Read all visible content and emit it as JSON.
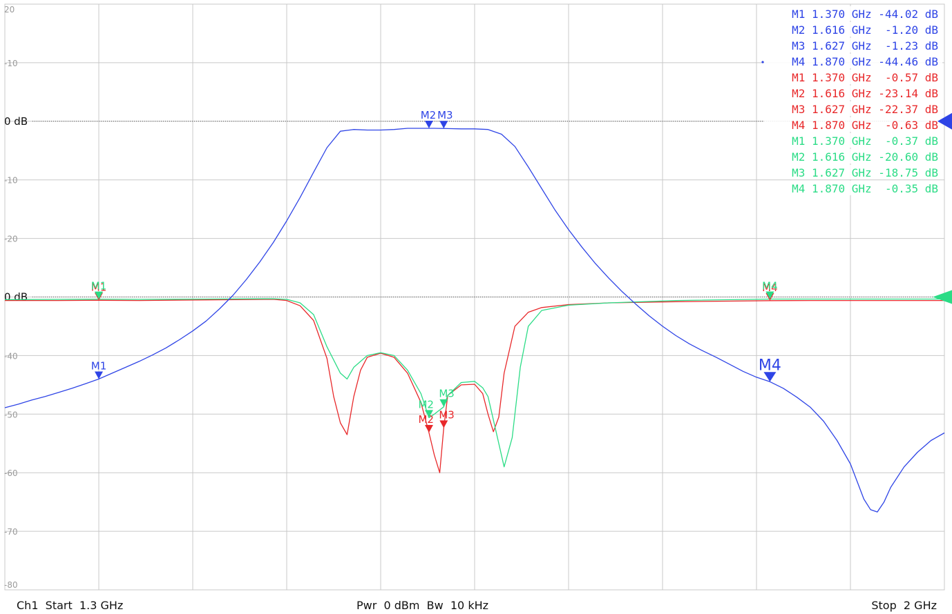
{
  "chart_data": {
    "type": "line",
    "x_range_ghz": [
      1.3,
      2.0
    ],
    "y_ticks": [
      "20",
      "-10",
      "0 dB",
      "-10",
      "-20",
      "0 dB",
      "-40",
      "-50",
      "-60",
      "-70",
      "-80"
    ],
    "grid": true,
    "series": [
      {
        "color": "#2e44e6",
        "scale": "top",
        "points": [
          [
            1.3,
            -48.9
          ],
          [
            1.31,
            -48.3
          ],
          [
            1.32,
            -47.6
          ],
          [
            1.33,
            -47.0
          ],
          [
            1.34,
            -46.3
          ],
          [
            1.35,
            -45.6
          ],
          [
            1.36,
            -44.8
          ],
          [
            1.37,
            -44.0
          ],
          [
            1.38,
            -43.0
          ],
          [
            1.39,
            -42.0
          ],
          [
            1.4,
            -41.0
          ],
          [
            1.41,
            -39.9
          ],
          [
            1.42,
            -38.7
          ],
          [
            1.43,
            -37.3
          ],
          [
            1.44,
            -35.8
          ],
          [
            1.45,
            -34.1
          ],
          [
            1.46,
            -32.0
          ],
          [
            1.47,
            -29.7
          ],
          [
            1.48,
            -27.0
          ],
          [
            1.49,
            -24.0
          ],
          [
            1.5,
            -20.7
          ],
          [
            1.51,
            -17.0
          ],
          [
            1.52,
            -13.0
          ],
          [
            1.53,
            -8.7
          ],
          [
            1.54,
            -4.5
          ],
          [
            1.55,
            -1.7
          ],
          [
            1.56,
            -1.4
          ],
          [
            1.57,
            -1.5
          ],
          [
            1.58,
            -1.5
          ],
          [
            1.59,
            -1.4
          ],
          [
            1.6,
            -1.2
          ],
          [
            1.61,
            -1.2
          ],
          [
            1.616,
            -1.2
          ],
          [
            1.62,
            -1.2
          ],
          [
            1.627,
            -1.23
          ],
          [
            1.63,
            -1.25
          ],
          [
            1.64,
            -1.3
          ],
          [
            1.65,
            -1.3
          ],
          [
            1.66,
            -1.4
          ],
          [
            1.67,
            -2.2
          ],
          [
            1.68,
            -4.3
          ],
          [
            1.69,
            -7.8
          ],
          [
            1.7,
            -11.5
          ],
          [
            1.71,
            -15.2
          ],
          [
            1.72,
            -18.5
          ],
          [
            1.73,
            -21.5
          ],
          [
            1.74,
            -24.3
          ],
          [
            1.75,
            -26.8
          ],
          [
            1.76,
            -29.1
          ],
          [
            1.77,
            -31.2
          ],
          [
            1.78,
            -33.2
          ],
          [
            1.79,
            -35.0
          ],
          [
            1.8,
            -36.6
          ],
          [
            1.81,
            -38.0
          ],
          [
            1.82,
            -39.2
          ],
          [
            1.83,
            -40.3
          ],
          [
            1.84,
            -41.5
          ],
          [
            1.85,
            -42.7
          ],
          [
            1.86,
            -43.7
          ],
          [
            1.87,
            -44.46
          ],
          [
            1.88,
            -45.6
          ],
          [
            1.89,
            -47.1
          ],
          [
            1.9,
            -48.8
          ],
          [
            1.91,
            -51.2
          ],
          [
            1.92,
            -54.5
          ],
          [
            1.93,
            -58.5
          ],
          [
            1.935,
            -61.5
          ],
          [
            1.94,
            -64.5
          ],
          [
            1.945,
            -66.3
          ],
          [
            1.95,
            -66.7
          ],
          [
            1.955,
            -65.0
          ],
          [
            1.96,
            -62.5
          ],
          [
            1.97,
            -59.0
          ],
          [
            1.98,
            -56.5
          ],
          [
            1.99,
            -54.5
          ],
          [
            2.0,
            -53.2
          ]
        ]
      },
      {
        "color": "#e8282a",
        "scale": "bottom",
        "points": [
          [
            1.3,
            -0.6
          ],
          [
            1.34,
            -0.6
          ],
          [
            1.37,
            -0.57
          ],
          [
            1.4,
            -0.6
          ],
          [
            1.45,
            -0.5
          ],
          [
            1.5,
            -0.4
          ],
          [
            1.51,
            -0.6
          ],
          [
            1.52,
            -1.5
          ],
          [
            1.53,
            -4.0
          ],
          [
            1.54,
            -10.5
          ],
          [
            1.545,
            -17.0
          ],
          [
            1.55,
            -21.5
          ],
          [
            1.555,
            -23.5
          ],
          [
            1.56,
            -17.0
          ],
          [
            1.565,
            -12.5
          ],
          [
            1.57,
            -10.3
          ],
          [
            1.58,
            -9.6
          ],
          [
            1.59,
            -10.3
          ],
          [
            1.6,
            -13.0
          ],
          [
            1.61,
            -18.0
          ],
          [
            1.616,
            -23.14
          ],
          [
            1.62,
            -27.0
          ],
          [
            1.624,
            -30.0
          ],
          [
            1.627,
            -22.37
          ],
          [
            1.63,
            -16.8
          ],
          [
            1.64,
            -15.0
          ],
          [
            1.65,
            -14.9
          ],
          [
            1.656,
            -16.5
          ],
          [
            1.66,
            -20.0
          ],
          [
            1.664,
            -23.0
          ],
          [
            1.668,
            -20.5
          ],
          [
            1.672,
            -13.0
          ],
          [
            1.68,
            -5.0
          ],
          [
            1.69,
            -2.6
          ],
          [
            1.7,
            -1.8
          ],
          [
            1.72,
            -1.3
          ],
          [
            1.75,
            -1.0
          ],
          [
            1.8,
            -0.8
          ],
          [
            1.87,
            -0.63
          ],
          [
            1.9,
            -0.6
          ],
          [
            2.0,
            -0.6
          ]
        ]
      },
      {
        "color": "#2bdc86",
        "scale": "bottom",
        "points": [
          [
            1.3,
            -0.45
          ],
          [
            1.34,
            -0.4
          ],
          [
            1.37,
            -0.37
          ],
          [
            1.4,
            -0.4
          ],
          [
            1.45,
            -0.35
          ],
          [
            1.5,
            -0.3
          ],
          [
            1.51,
            -0.4
          ],
          [
            1.52,
            -1.0
          ],
          [
            1.53,
            -3.0
          ],
          [
            1.54,
            -8.5
          ],
          [
            1.55,
            -13.0
          ],
          [
            1.555,
            -14.0
          ],
          [
            1.56,
            -12.0
          ],
          [
            1.57,
            -10.0
          ],
          [
            1.58,
            -9.5
          ],
          [
            1.59,
            -10.0
          ],
          [
            1.6,
            -12.5
          ],
          [
            1.61,
            -16.5
          ],
          [
            1.616,
            -20.6
          ],
          [
            1.62,
            -20.0
          ],
          [
            1.627,
            -18.75
          ],
          [
            1.63,
            -16.8
          ],
          [
            1.64,
            -14.6
          ],
          [
            1.65,
            -14.4
          ],
          [
            1.656,
            -15.5
          ],
          [
            1.66,
            -17.0
          ],
          [
            1.666,
            -23.0
          ],
          [
            1.672,
            -29.0
          ],
          [
            1.678,
            -24.0
          ],
          [
            1.684,
            -12.0
          ],
          [
            1.69,
            -5.0
          ],
          [
            1.7,
            -2.3
          ],
          [
            1.72,
            -1.4
          ],
          [
            1.75,
            -1.0
          ],
          [
            1.8,
            -0.6
          ],
          [
            1.87,
            -0.35
          ],
          [
            1.9,
            -0.35
          ],
          [
            2.0,
            -0.35
          ]
        ]
      }
    ],
    "markers": [
      {
        "series": 0,
        "label": "M1",
        "freq": 1.37,
        "value": -44.02,
        "big": false
      },
      {
        "series": 0,
        "label": "M2",
        "freq": 1.616,
        "value": -1.2,
        "big": false
      },
      {
        "series": 0,
        "label": "M3",
        "freq": 1.627,
        "value": -1.23,
        "big": false
      },
      {
        "series": 0,
        "label": "M4",
        "freq": 1.87,
        "value": -44.46,
        "big": true
      },
      {
        "series": 1,
        "label": "M1",
        "freq": 1.37,
        "value": -0.57,
        "big": false
      },
      {
        "series": 1,
        "label": "M2",
        "freq": 1.616,
        "value": -23.14,
        "big": false
      },
      {
        "series": 1,
        "label": "M3",
        "freq": 1.627,
        "value": -22.37,
        "big": false
      },
      {
        "series": 1,
        "label": "M4",
        "freq": 1.87,
        "value": -0.63,
        "big": false
      },
      {
        "series": 2,
        "label": "M1",
        "freq": 1.37,
        "value": -0.37,
        "big": false
      },
      {
        "series": 2,
        "label": "M2",
        "freq": 1.616,
        "value": -20.6,
        "big": false
      },
      {
        "series": 2,
        "label": "M3",
        "freq": 1.627,
        "value": -18.75,
        "big": false
      },
      {
        "series": 2,
        "label": "M4",
        "freq": 1.87,
        "value": -0.35,
        "big": false
      }
    ],
    "readout": [
      {
        "color": "#2e44e6",
        "text": "M1 1.370 GHz -44.02 dB",
        "active": false
      },
      {
        "color": "#2e44e6",
        "text": "M2 1.616 GHz  -1.20 dB",
        "active": false
      },
      {
        "color": "#2e44e6",
        "text": "M3 1.627 GHz  -1.23 dB",
        "active": false
      },
      {
        "color": "#2e44e6",
        "text": "M4 1.870 GHz -44.46 dB",
        "active": true
      },
      {
        "color": "#e8282a",
        "text": "M1 1.370 GHz  -0.57 dB",
        "active": false
      },
      {
        "color": "#e8282a",
        "text": "M2 1.616 GHz -23.14 dB",
        "active": false
      },
      {
        "color": "#e8282a",
        "text": "M3 1.627 GHz -22.37 dB",
        "active": false
      },
      {
        "color": "#e8282a",
        "text": "M4 1.870 GHz  -0.63 dB",
        "active": false
      },
      {
        "color": "#2bdc86",
        "text": "M1 1.370 GHz  -0.37 dB",
        "active": false
      },
      {
        "color": "#2bdc86",
        "text": "M2 1.616 GHz -20.60 dB",
        "active": false
      },
      {
        "color": "#2bdc86",
        "text": "M3 1.627 GHz -18.75 dB",
        "active": false
      },
      {
        "color": "#2bdc86",
        "text": "M4 1.870 GHz  -0.35 dB",
        "active": false
      }
    ]
  },
  "footer": {
    "left": "Ch1  Start  1.3 GHz",
    "center": "Pwr  0 dBm  Bw  10 kHz",
    "right": "Stop  2 GHz"
  }
}
